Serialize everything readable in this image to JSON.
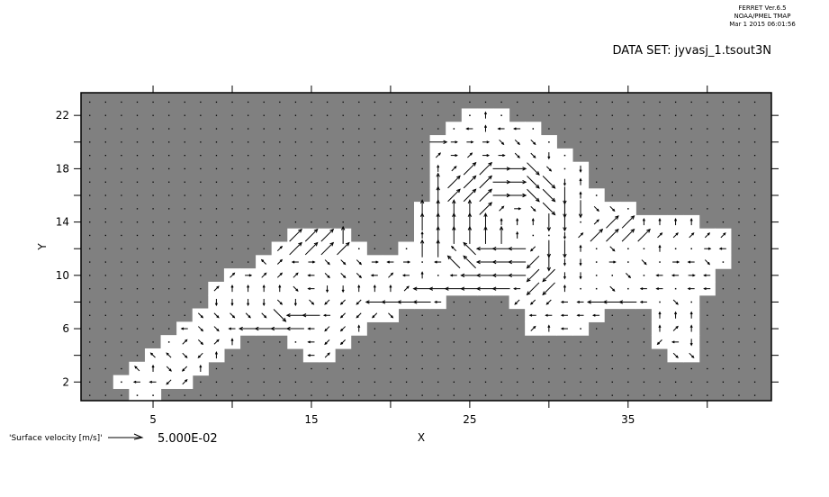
{
  "header": {
    "program": "FERRET  Ver.6.5",
    "org": "NOAA/PMEL TMAP",
    "timestamp": "Mar  1 2015 06:01:56",
    "dataset": "DATA SET: jyvasj_1.tsout3N"
  },
  "chart_data": {
    "type": "vector",
    "title": "",
    "xlabel": "X",
    "ylabel": "Y",
    "xlim": [
      0.45,
      44.05
    ],
    "ylim": [
      0.6,
      23.7
    ],
    "x_ticks": [
      5,
      10,
      15,
      20,
      25,
      30,
      35,
      40
    ],
    "x_tick_labels": [
      "5",
      "",
      "15",
      "",
      "25",
      "",
      "35",
      ""
    ],
    "y_ticks": [
      2,
      4,
      6,
      8,
      10,
      12,
      14,
      16,
      18,
      20,
      22
    ],
    "y_tick_labels": [
      "2",
      "",
      "6",
      "",
      "10",
      "",
      "14",
      "",
      "18",
      "",
      "22"
    ],
    "grid_x": [
      1,
      43
    ],
    "grid_y": [
      1,
      23
    ],
    "land_color": "#808080",
    "ocean_color": "#ffffff",
    "vector_code": {
      "land": ".",
      "negligible": "o",
      "directions": {
        "e": "E",
        "r": "NE",
        "n": "N",
        "q": "NW",
        "w": "W",
        "z": "SW",
        "s": "S",
        "c": "SE"
      },
      "uppercase": "strong",
      "lowercase": "weak"
    },
    "vector_rows_top_to_bottom": [
      "...........................................",
      "........................ono................",
      ".......................ownwwo..............",
      "......................Eeeeccco.............",
      "......................rereeccso............",
      "......................nrRREECcos...........",
      "......................NRRREECCsn...........",
      "......................NRRREECCSno..........",
      ".....................NNNNRrecCSScco........",
      ".....................NNNNNnnnSSorRRnnnn....",
      ".............RRRN....nNNNNNnoosrRRRRrrrrr..",
      "............rRRRRo..oNNqQWWWzSSnocoonooew..",
      "...........qrweccceweсwQQWWWZSssoeocoewco..",
      ".........rerrrwcccwrwnowWWWWZZssoocowwew...",
      "........rnnnncwssnnnrWWWWWWwZZnoocowwoww...",
      "........sssscsczzzWWWWw....zzzwwWWWwoco....",
      ".......cccccCWWwzzzc........wwwww...nnn....",
      "......wccwWWWWwzzn..........rnwo....nrn....",
      ".....orcrn...owzz...................zws....",
      "....qqczn.....wr.....................cc....",
      "...qnczn...................................",
      "..owwzr....................................",
      "...oo......................................"
    ],
    "key": {
      "label": "'Surface velocity [m/s]'",
      "value": "5.000E-02"
    }
  }
}
